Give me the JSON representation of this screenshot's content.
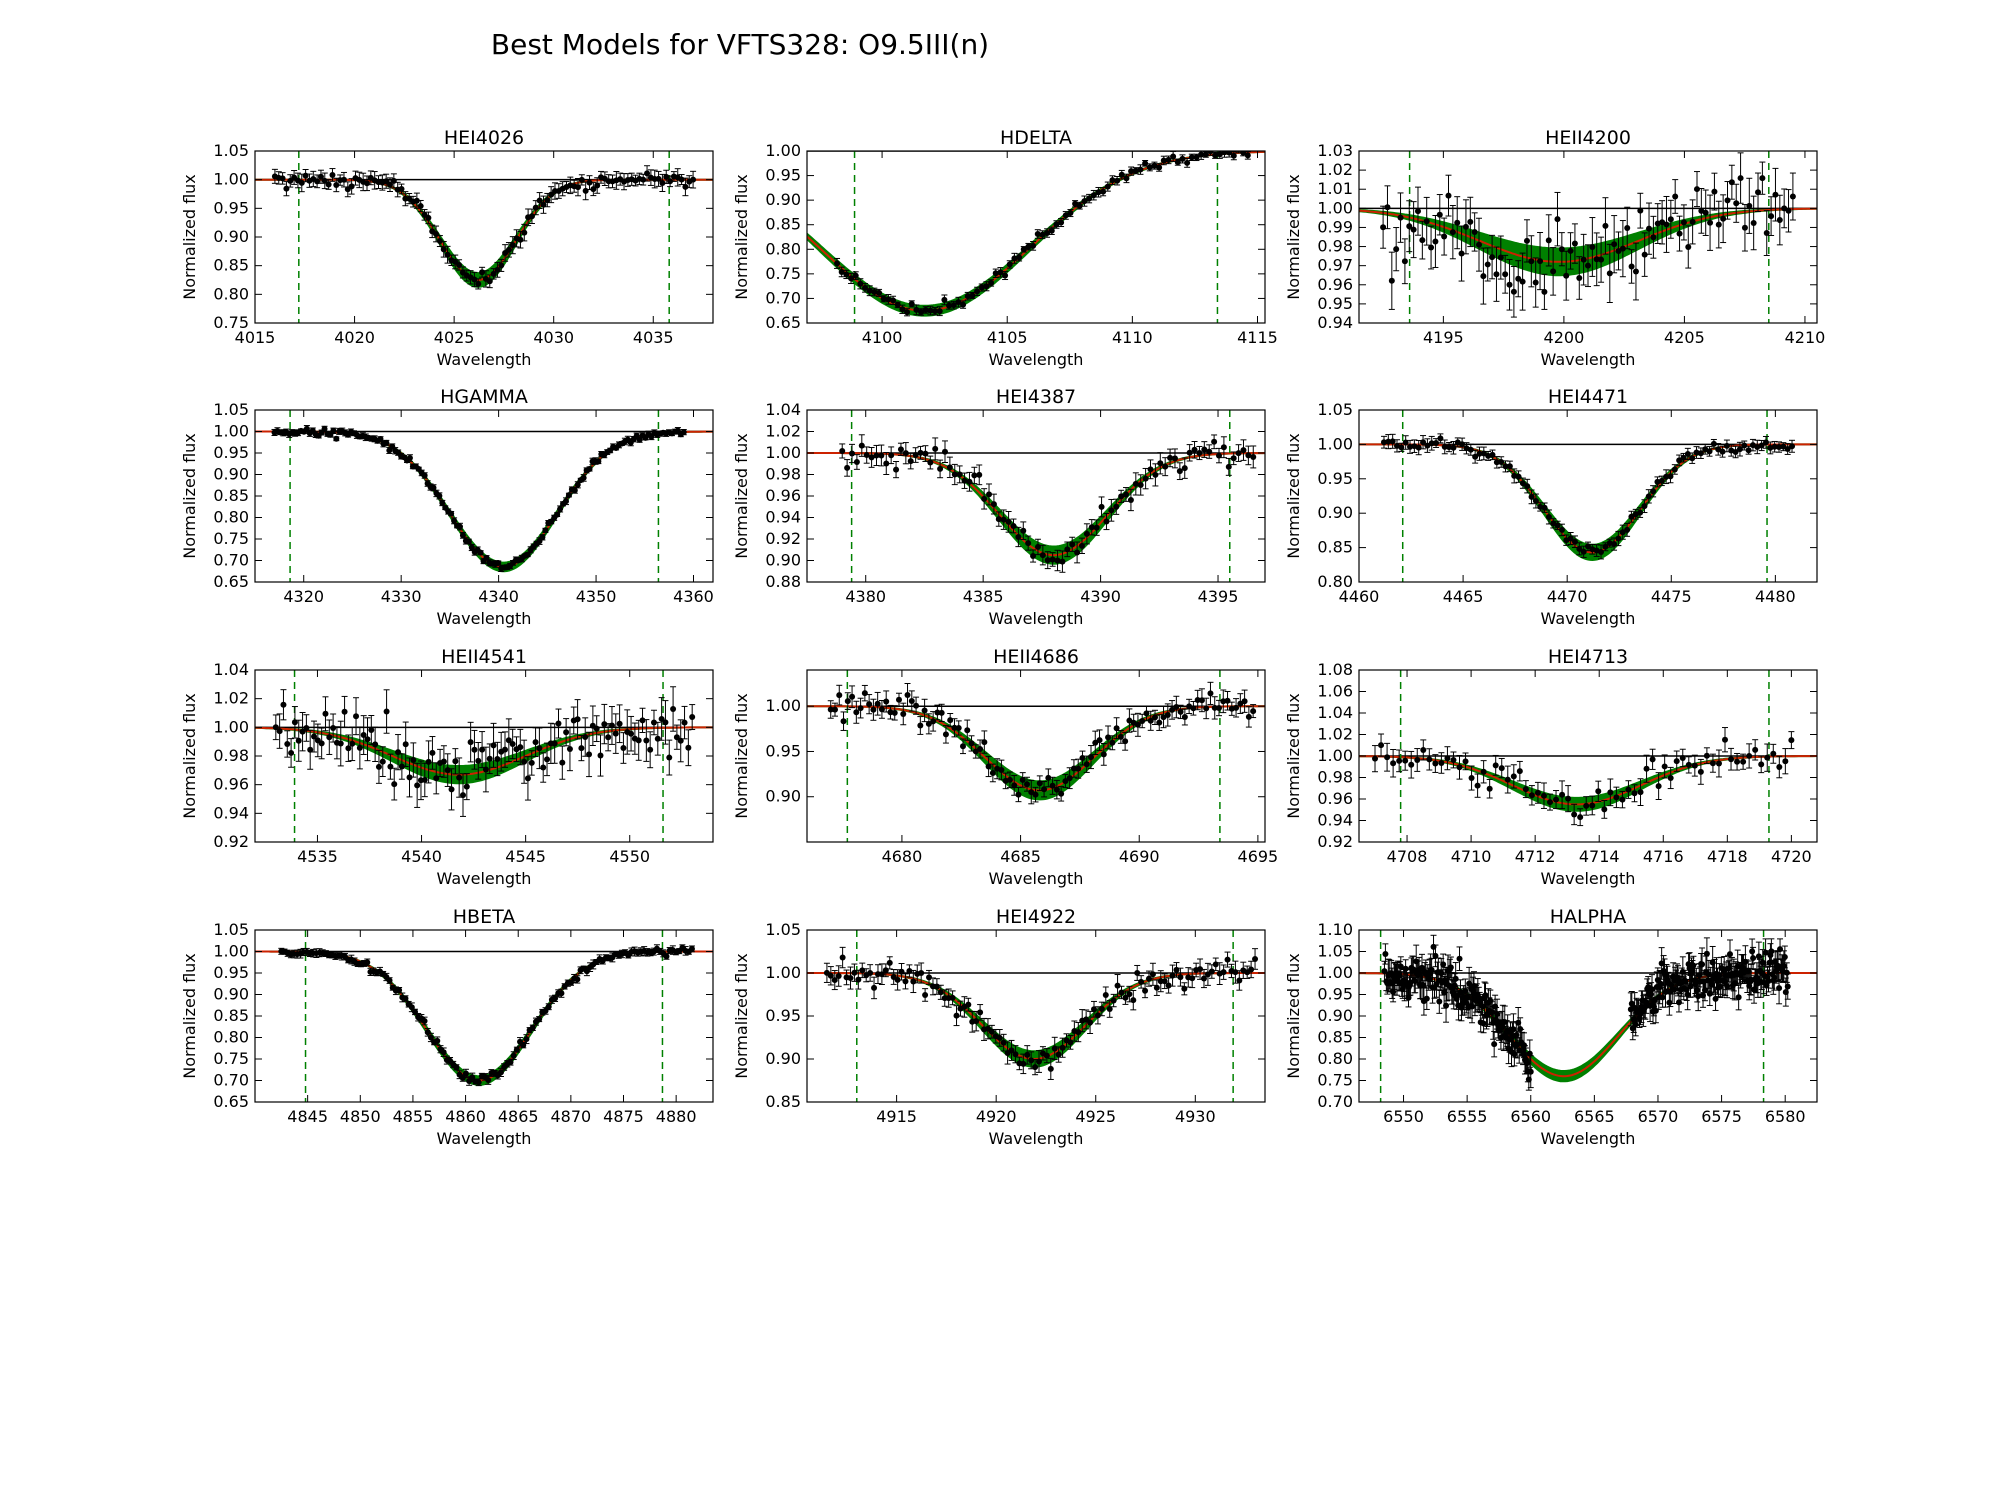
{
  "figure": {
    "title": "Best Models for VFTS328: O9.5III(n)",
    "colors": {
      "background": "#ffffff",
      "data": "#000000",
      "model_envelope": "#008000",
      "best_model": "#cc2200",
      "continuum": "#000000",
      "range_marker": "#008000"
    }
  },
  "chart_data": [
    {
      "type": "line",
      "title": "HEI4026",
      "xlabel": "Wavelength",
      "ylabel": "Normalized flux",
      "xlim": [
        4015,
        4038
      ],
      "ylim": [
        0.75,
        1.05
      ],
      "xticks": [
        "4015",
        "4020",
        "4025",
        "4030",
        "4035"
      ],
      "xtick_values": [
        4015,
        4020,
        4025,
        4030,
        4035
      ],
      "yticks": [
        "0.75",
        "0.80",
        "0.85",
        "0.90",
        "0.95",
        "1.00",
        "1.05"
      ],
      "ytick_values": [
        0.75,
        0.8,
        0.85,
        0.9,
        0.95,
        1.0,
        1.05
      ],
      "fit_range": [
        4017.2,
        4035.8
      ],
      "line": {
        "center": 4026.2,
        "depth": 0.175,
        "width": 1.9,
        "envelope": 0.012
      },
      "data": {
        "x_range": [
          4016,
          4037
        ],
        "n": 110,
        "noise": 0.006,
        "err": 0.012
      }
    },
    {
      "type": "line",
      "title": "HDELTA",
      "xlabel": "Wavelength",
      "ylabel": "Normalized flux",
      "xlim": [
        4097,
        4115.3
      ],
      "ylim": [
        0.65,
        1.0
      ],
      "xticks": [
        "4100",
        "4105",
        "4110",
        "4115"
      ],
      "xtick_values": [
        4100,
        4105,
        4110,
        4115
      ],
      "yticks": [
        "0.65",
        "0.70",
        "0.75",
        "0.80",
        "0.85",
        "0.90",
        "0.95",
        "1.00"
      ],
      "ytick_values": [
        0.65,
        0.7,
        0.75,
        0.8,
        0.85,
        0.9,
        0.95,
        1.0
      ],
      "fit_range": [
        4098.9,
        4113.4
      ],
      "line": {
        "center": 4101.7,
        "depth": 0.325,
        "width": 4.2,
        "envelope": 0.01
      },
      "data": {
        "x_range": [
          4098.2,
          4114.8
        ],
        "n": 90,
        "noise": 0.005,
        "err": 0.008
      }
    },
    {
      "type": "line",
      "title": "HEII4200",
      "xlabel": "Wavelength",
      "ylabel": "Normalized flux",
      "xlim": [
        4191.5,
        4210.5
      ],
      "ylim": [
        0.94,
        1.03
      ],
      "xticks": [
        "4195",
        "4200",
        "4205",
        "4210"
      ],
      "xtick_values": [
        4195,
        4200,
        4205,
        4210
      ],
      "yticks": [
        "0.94",
        "0.95",
        "0.96",
        "0.97",
        "0.98",
        "0.99",
        "1.00",
        "1.01",
        "1.02",
        "1.03"
      ],
      "ytick_values": [
        0.94,
        0.95,
        0.96,
        0.97,
        0.98,
        0.99,
        1.0,
        1.01,
        1.02,
        1.03
      ],
      "fit_range": [
        4193.6,
        4208.5
      ],
      "line": {
        "center": 4199.8,
        "depth": 0.028,
        "width": 3.3,
        "envelope": 0.007
      },
      "data": {
        "x_range": [
          4192.5,
          4209.5
        ],
        "n": 95,
        "noise": 0.01,
        "err": 0.012
      }
    },
    {
      "type": "line",
      "title": "HGAMMA",
      "xlabel": "Wavelength",
      "ylabel": "Normalized flux",
      "xlim": [
        4315,
        4362
      ],
      "ylim": [
        0.65,
        1.05
      ],
      "xticks": [
        "4320",
        "4330",
        "4340",
        "4350",
        "4360"
      ],
      "xtick_values": [
        4320,
        4330,
        4340,
        4350,
        4360
      ],
      "yticks": [
        "0.65",
        "0.70",
        "0.75",
        "0.80",
        "0.85",
        "0.90",
        "0.95",
        "1.00",
        "1.05"
      ],
      "ytick_values": [
        0.65,
        0.7,
        0.75,
        0.8,
        0.85,
        0.9,
        0.95,
        1.0,
        1.05
      ],
      "fit_range": [
        4318.6,
        4356.4
      ],
      "line": {
        "center": 4340.5,
        "depth": 0.315,
        "width": 5.5,
        "envelope": 0.01
      },
      "data": {
        "x_range": [
          4317,
          4359
        ],
        "n": 140,
        "noise": 0.004,
        "err": 0.006
      }
    },
    {
      "type": "line",
      "title": "HEI4387",
      "xlabel": "Wavelength",
      "ylabel": "Normalized flux",
      "xlim": [
        4377.5,
        4397
      ],
      "ylim": [
        0.88,
        1.04
      ],
      "xticks": [
        "4380",
        "4385",
        "4390",
        "4395"
      ],
      "xtick_values": [
        4380,
        4385,
        4390,
        4395
      ],
      "yticks": [
        "0.88",
        "0.90",
        "0.92",
        "0.94",
        "0.96",
        "0.98",
        "1.00",
        "1.02",
        "1.04"
      ],
      "ytick_values": [
        0.88,
        0.9,
        0.92,
        0.94,
        0.96,
        0.98,
        1.0,
        1.02,
        1.04
      ],
      "fit_range": [
        4379.4,
        4395.5
      ],
      "line": {
        "center": 4388.0,
        "depth": 0.095,
        "width": 2.3,
        "envelope": 0.008
      },
      "data": {
        "x_range": [
          4379,
          4396.5
        ],
        "n": 85,
        "noise": 0.006,
        "err": 0.008
      }
    },
    {
      "type": "line",
      "title": "HEI4471",
      "xlabel": "Wavelength",
      "ylabel": "Normalized flux",
      "xlim": [
        4460,
        4482
      ],
      "ylim": [
        0.8,
        1.05
      ],
      "xticks": [
        "4460",
        "4465",
        "4470",
        "4475",
        "4480"
      ],
      "xtick_values": [
        4460,
        4465,
        4470,
        4475,
        4480
      ],
      "yticks": [
        "0.80",
        "0.85",
        "0.90",
        "0.95",
        "1.00",
        "1.05"
      ],
      "ytick_values": [
        0.8,
        0.85,
        0.9,
        0.95,
        1.0,
        1.05
      ],
      "fit_range": [
        4462.1,
        4479.6
      ],
      "line": {
        "center": 4471.2,
        "depth": 0.157,
        "width": 2.3,
        "envelope": 0.011
      },
      "data": {
        "x_range": [
          4461.2,
          4480.8
        ],
        "n": 95,
        "noise": 0.005,
        "err": 0.008
      }
    },
    {
      "type": "line",
      "title": "HEII4541",
      "xlabel": "Wavelength",
      "ylabel": "Normalized flux",
      "xlim": [
        4532,
        4554
      ],
      "ylim": [
        0.92,
        1.04
      ],
      "xticks": [
        "4535",
        "4540",
        "4545",
        "4550"
      ],
      "xtick_values": [
        4535,
        4540,
        4545,
        4550
      ],
      "yticks": [
        "0.92",
        "0.94",
        "0.96",
        "0.98",
        "1.00",
        "1.02",
        "1.04"
      ],
      "ytick_values": [
        0.92,
        0.94,
        0.96,
        0.98,
        1.0,
        1.02,
        1.04
      ],
      "fit_range": [
        4533.9,
        4551.6
      ],
      "line": {
        "center": 4541.8,
        "depth": 0.033,
        "width": 3.2,
        "envelope": 0.006
      },
      "data": {
        "x_range": [
          4533,
          4553
        ],
        "n": 110,
        "noise": 0.01,
        "err": 0.012
      }
    },
    {
      "type": "line",
      "title": "HEII4686",
      "xlabel": "Wavelength",
      "ylabel": "Normalized flux",
      "xlim": [
        4676,
        4695.3
      ],
      "ylim": [
        0.85,
        1.04
      ],
      "xticks": [
        "4680",
        "4685",
        "4690",
        "4695"
      ],
      "xtick_values": [
        4680,
        4685,
        4690,
        4695
      ],
      "yticks": [
        "0.90",
        "0.95",
        "1.00"
      ],
      "ytick_values": [
        0.9,
        0.95,
        1.0
      ],
      "fit_range": [
        4677.7,
        4693.4
      ],
      "line": {
        "center": 4685.8,
        "depth": 0.093,
        "width": 2.3,
        "envelope": 0.01
      },
      "data": {
        "x_range": [
          4677,
          4694.8
        ],
        "n": 100,
        "noise": 0.008,
        "err": 0.01
      }
    },
    {
      "type": "line",
      "title": "HEI4713",
      "xlabel": "Wavelength",
      "ylabel": "Normalized flux",
      "xlim": [
        4706.5,
        4720.8
      ],
      "ylim": [
        0.92,
        1.08
      ],
      "xticks": [
        "4708",
        "4710",
        "4712",
        "4714",
        "4716",
        "4718",
        "4720"
      ],
      "xtick_values": [
        4708,
        4710,
        4712,
        4714,
        4716,
        4718,
        4720
      ],
      "yticks": [
        "0.92",
        "0.94",
        "0.96",
        "0.98",
        "1.00",
        "1.02",
        "1.04",
        "1.06",
        "1.08"
      ],
      "ytick_values": [
        0.92,
        0.94,
        0.96,
        0.98,
        1.0,
        1.02,
        1.04,
        1.06,
        1.08
      ],
      "fit_range": [
        4707.8,
        4719.3
      ],
      "line": {
        "center": 4713.3,
        "depth": 0.045,
        "width": 2.0,
        "envelope": 0.006
      },
      "data": {
        "x_range": [
          4707,
          4720
        ],
        "n": 70,
        "noise": 0.008,
        "err": 0.01
      }
    },
    {
      "type": "line",
      "title": "HBETA",
      "xlabel": "Wavelength",
      "ylabel": "Normalized flux",
      "xlim": [
        4840,
        4883.5
      ],
      "ylim": [
        0.65,
        1.05
      ],
      "xticks": [
        "4845",
        "4850",
        "4855",
        "4860",
        "4865",
        "4870",
        "4875",
        "4880"
      ],
      "xtick_values": [
        4845,
        4850,
        4855,
        4860,
        4865,
        4870,
        4875,
        4880
      ],
      "yticks": [
        "0.65",
        "0.70",
        "0.75",
        "0.80",
        "0.85",
        "0.90",
        "0.95",
        "1.00",
        "1.05"
      ],
      "ytick_values": [
        0.65,
        0.7,
        0.75,
        0.8,
        0.85,
        0.9,
        0.95,
        1.0,
        1.05
      ],
      "fit_range": [
        4844.8,
        4878.7
      ],
      "line": {
        "center": 4861.3,
        "depth": 0.3,
        "width": 5.0,
        "envelope": 0.01
      },
      "data": {
        "x_range": [
          4842.5,
          4881.5
        ],
        "n": 130,
        "noise": 0.005,
        "err": 0.008
      }
    },
    {
      "type": "line",
      "title": "HEI4922",
      "xlabel": "Wavelength",
      "ylabel": "Normalized flux",
      "xlim": [
        4910.5,
        4933.5
      ],
      "ylim": [
        0.85,
        1.05
      ],
      "xticks": [
        "4915",
        "4920",
        "4925",
        "4930"
      ],
      "xtick_values": [
        4915,
        4920,
        4925,
        4930
      ],
      "yticks": [
        "0.85",
        "0.90",
        "0.95",
        "1.00",
        "1.05"
      ],
      "ytick_values": [
        0.85,
        0.9,
        0.95,
        1.0,
        1.05
      ],
      "fit_range": [
        4913.0,
        4931.9
      ],
      "line": {
        "center": 4921.9,
        "depth": 0.1,
        "width": 2.6,
        "envelope": 0.009
      },
      "data": {
        "x_range": [
          4911.5,
          4933
        ],
        "n": 110,
        "noise": 0.007,
        "err": 0.01
      }
    },
    {
      "type": "line",
      "title": "HALPHA",
      "xlabel": "Wavelength",
      "ylabel": "Normalized flux",
      "xlim": [
        6546.5,
        6582.5
      ],
      "ylim": [
        0.7,
        1.1
      ],
      "xticks": [
        "6550",
        "6555",
        "6560",
        "6565",
        "6570",
        "6575",
        "6580"
      ],
      "xtick_values": [
        6550,
        6555,
        6560,
        6565,
        6570,
        6575,
        6580
      ],
      "yticks": [
        "0.70",
        "0.75",
        "0.80",
        "0.85",
        "0.90",
        "0.95",
        "1.00",
        "1.05",
        "1.10"
      ],
      "ytick_values": [
        0.7,
        0.75,
        0.8,
        0.85,
        0.9,
        0.95,
        1.0,
        1.05,
        1.1
      ],
      "fit_range": [
        6548.2,
        6578.3
      ],
      "line": {
        "center": 6562.6,
        "depth": 0.24,
        "width": 4.3,
        "envelope": 0.012
      },
      "data": {
        "x_range": [
          6548.5,
          6580.2
        ],
        "n": 420,
        "noise": 0.025,
        "err": 0.03,
        "gap": [
          6560.0,
          6567.8
        ]
      }
    }
  ]
}
